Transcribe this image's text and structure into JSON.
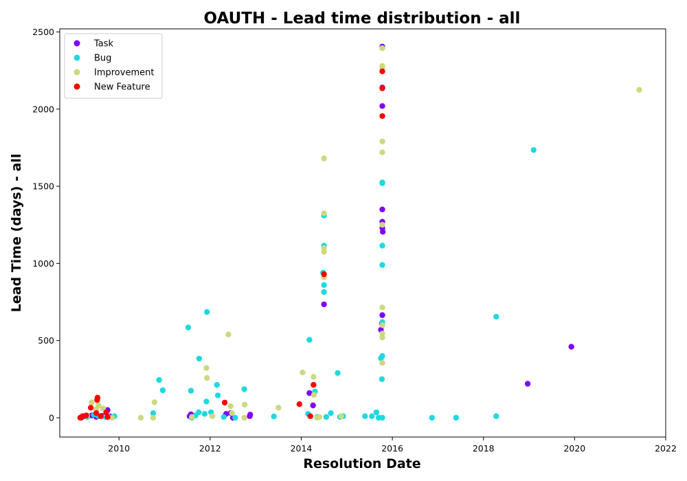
{
  "chart_data": {
    "type": "scatter",
    "title": "OAUTH - Lead time distribution - all",
    "xlabel": "Resolution Date",
    "ylabel": "Lead Time (days) - all",
    "xlim": [
      2008.7,
      2022.0
    ],
    "ylim": [
      -125,
      2520
    ],
    "xticks": [
      2010,
      2012,
      2014,
      2016,
      2018,
      2020,
      2022
    ],
    "yticks": [
      0,
      500,
      1000,
      1500,
      2000,
      2500
    ],
    "legend_position": "upper-left",
    "grid": false,
    "series": [
      {
        "name": "Task",
        "color": "#7f00ff",
        "points": [
          [
            2009.17,
            0
          ],
          [
            2009.25,
            10
          ],
          [
            2009.4,
            15
          ],
          [
            2009.5,
            5
          ],
          [
            2009.62,
            12
          ],
          [
            2009.75,
            50
          ],
          [
            2009.8,
            8
          ],
          [
            2011.55,
            10
          ],
          [
            2011.58,
            22
          ],
          [
            2012.35,
            25
          ],
          [
            2012.45,
            30
          ],
          [
            2012.5,
            0
          ],
          [
            2012.87,
            10
          ],
          [
            2012.88,
            20
          ],
          [
            2014.18,
            160
          ],
          [
            2014.26,
            80
          ],
          [
            2014.5,
            735
          ],
          [
            2015.75,
            570
          ],
          [
            2015.77,
            610
          ],
          [
            2015.78,
            665
          ],
          [
            2015.79,
            1205
          ],
          [
            2015.78,
            1230
          ],
          [
            2015.78,
            1270
          ],
          [
            2015.78,
            1350
          ],
          [
            2015.78,
            2020
          ],
          [
            2015.78,
            2140
          ],
          [
            2015.78,
            2405
          ],
          [
            2018.97,
            220
          ],
          [
            2019.93,
            460
          ]
        ]
      },
      {
        "name": "Bug",
        "color": "#1dd9e0",
        "points": [
          [
            2009.3,
            5
          ],
          [
            2009.45,
            20
          ],
          [
            2009.55,
            10
          ],
          [
            2009.7,
            5
          ],
          [
            2009.9,
            10
          ],
          [
            2010.75,
            30
          ],
          [
            2010.88,
            245
          ],
          [
            2010.96,
            178
          ],
          [
            2011.52,
            585
          ],
          [
            2011.58,
            175
          ],
          [
            2011.6,
            0
          ],
          [
            2011.68,
            15
          ],
          [
            2011.75,
            35
          ],
          [
            2011.76,
            383
          ],
          [
            2011.88,
            25
          ],
          [
            2011.92,
            105
          ],
          [
            2011.93,
            685
          ],
          [
            2012.02,
            35
          ],
          [
            2012.15,
            213
          ],
          [
            2012.17,
            145
          ],
          [
            2012.3,
            5
          ],
          [
            2012.55,
            0
          ],
          [
            2012.75,
            185
          ],
          [
            2013.4,
            8
          ],
          [
            2014.15,
            25
          ],
          [
            2014.18,
            505
          ],
          [
            2014.3,
            170
          ],
          [
            2014.35,
            5
          ],
          [
            2014.48,
            940
          ],
          [
            2014.5,
            860
          ],
          [
            2014.5,
            815
          ],
          [
            2014.5,
            1310
          ],
          [
            2014.5,
            1115
          ],
          [
            2014.55,
            5
          ],
          [
            2014.65,
            30
          ],
          [
            2014.8,
            290
          ],
          [
            2014.85,
            5
          ],
          [
            2014.92,
            10
          ],
          [
            2015.4,
            10
          ],
          [
            2015.55,
            10
          ],
          [
            2015.65,
            35
          ],
          [
            2015.7,
            0
          ],
          [
            2015.78,
            0
          ],
          [
            2015.77,
            250
          ],
          [
            2015.75,
            385
          ],
          [
            2015.78,
            400
          ],
          [
            2015.78,
            620
          ],
          [
            2015.78,
            990
          ],
          [
            2015.78,
            1115
          ],
          [
            2015.78,
            1520
          ],
          [
            2015.78,
            1525
          ],
          [
            2016.87,
            0
          ],
          [
            2017.4,
            0
          ],
          [
            2018.28,
            10
          ],
          [
            2018.28,
            655
          ],
          [
            2019.1,
            1735
          ]
        ]
      },
      {
        "name": "Improvement",
        "color": "#cdd97f",
        "points": [
          [
            2009.3,
            15
          ],
          [
            2009.4,
            100
          ],
          [
            2009.5,
            55
          ],
          [
            2009.55,
            80
          ],
          [
            2009.65,
            60
          ],
          [
            2009.75,
            10
          ],
          [
            2009.85,
            0
          ],
          [
            2010.48,
            0
          ],
          [
            2010.75,
            0
          ],
          [
            2010.78,
            100
          ],
          [
            2011.6,
            5
          ],
          [
            2011.92,
            322
          ],
          [
            2011.93,
            258
          ],
          [
            2012.05,
            10
          ],
          [
            2012.4,
            540
          ],
          [
            2012.45,
            75
          ],
          [
            2012.48,
            30
          ],
          [
            2012.75,
            0
          ],
          [
            2012.76,
            85
          ],
          [
            2013.5,
            65
          ],
          [
            2014.03,
            293
          ],
          [
            2014.27,
            265
          ],
          [
            2014.28,
            148
          ],
          [
            2014.35,
            0
          ],
          [
            2014.4,
            5
          ],
          [
            2014.5,
            1075
          ],
          [
            2014.5,
            1100
          ],
          [
            2014.5,
            1325
          ],
          [
            2014.5,
            1680
          ],
          [
            2014.5,
            910
          ],
          [
            2014.88,
            10
          ],
          [
            2015.78,
            355
          ],
          [
            2015.78,
            520
          ],
          [
            2015.78,
            545
          ],
          [
            2015.78,
            600
          ],
          [
            2015.78,
            715
          ],
          [
            2015.78,
            1250
          ],
          [
            2015.78,
            1720
          ],
          [
            2015.78,
            1790
          ],
          [
            2015.78,
            2270
          ],
          [
            2015.78,
            2280
          ],
          [
            2015.78,
            2395
          ],
          [
            2021.42,
            2125
          ]
        ]
      },
      {
        "name": "New Feature",
        "color": "#ff0000",
        "points": [
          [
            2009.15,
            0
          ],
          [
            2009.2,
            10
          ],
          [
            2009.28,
            15
          ],
          [
            2009.38,
            65
          ],
          [
            2009.5,
            30
          ],
          [
            2009.52,
            115
          ],
          [
            2009.53,
            130
          ],
          [
            2009.6,
            10
          ],
          [
            2009.72,
            35
          ],
          [
            2009.75,
            5
          ],
          [
            2012.32,
            98
          ],
          [
            2013.96,
            88
          ],
          [
            2014.2,
            10
          ],
          [
            2014.27,
            213
          ],
          [
            2014.5,
            930
          ],
          [
            2015.78,
            1955
          ],
          [
            2015.78,
            2135
          ],
          [
            2015.78,
            2245
          ]
        ]
      }
    ]
  }
}
